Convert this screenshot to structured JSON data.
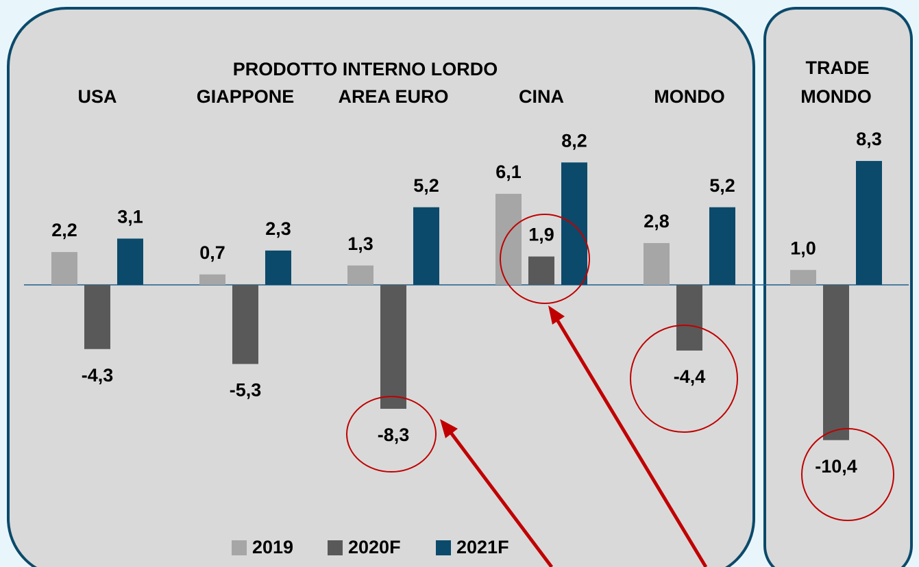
{
  "chart_data": {
    "type": "bar",
    "panel_titles": [
      "PRODOTTO INTERNO LORDO",
      "TRADE"
    ],
    "categories": [
      "USA",
      "GIAPPONE",
      "AREA EURO",
      "CINA",
      "MONDO",
      "MONDO"
    ],
    "series": [
      {
        "name": "2019",
        "color": "#a6a6a6",
        "values": [
          2.2,
          0.7,
          1.3,
          6.1,
          2.8,
          1.0
        ],
        "value_labels": [
          "2,2",
          "0,7",
          "1,3",
          "6,1",
          "2,8",
          "1,0"
        ]
      },
      {
        "name": "2020F",
        "color": "#595959",
        "values": [
          -4.3,
          -5.3,
          -8.3,
          1.9,
          -4.4,
          -10.4
        ],
        "value_labels": [
          "-4,3",
          "-5,3",
          "-8,3",
          "1,9",
          "-4,4",
          "-10,4"
        ]
      },
      {
        "name": "2021F",
        "color": "#0b4a6b",
        "values": [
          3.1,
          2.3,
          5.2,
          8.2,
          5.2,
          8.3
        ],
        "value_labels": [
          "3,1",
          "2,3",
          "5,2",
          "8,2",
          "5,2",
          "8,3"
        ]
      }
    ],
    "ylim": [
      -12,
      10
    ]
  }
}
